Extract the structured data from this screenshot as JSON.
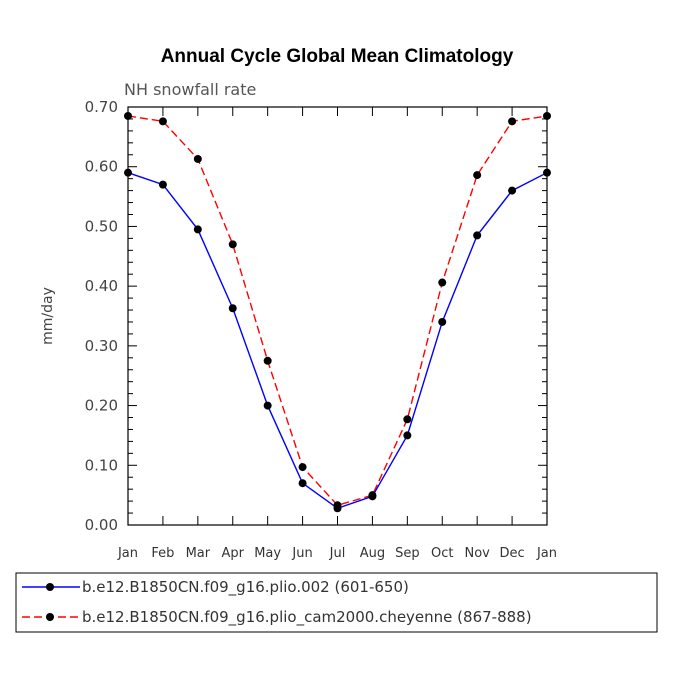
{
  "chart_data": {
    "type": "line",
    "title": "Annual Cycle Global Mean Climatology",
    "subtitle": "NH snowfall rate",
    "xlabel": "",
    "ylabel": "mm/day",
    "ylim": [
      0,
      0.7
    ],
    "yticks": [
      "0.00",
      "0.10",
      "0.20",
      "0.30",
      "0.40",
      "0.50",
      "0.60",
      "0.70"
    ],
    "categories": [
      "Jan",
      "Feb",
      "Mar",
      "Apr",
      "May",
      "Jun",
      "Jul",
      "Aug",
      "Sep",
      "Oct",
      "Nov",
      "Dec",
      "Jan"
    ],
    "series": [
      {
        "name": "b.e12.B1850CN.f09_g16.plio.002 (601-650)",
        "color": "#0000ff",
        "dash": "solid",
        "values": [
          0.59,
          0.57,
          0.495,
          0.363,
          0.2,
          0.07,
          0.028,
          0.048,
          0.15,
          0.34,
          0.485,
          0.56,
          0.59
        ]
      },
      {
        "name": "b.e12.B1850CN.f09_g16.plio_cam2000.cheyenne (867-888)",
        "color": "#ff0000",
        "dash": "dashed",
        "values": [
          0.685,
          0.676,
          0.613,
          0.47,
          0.275,
          0.097,
          0.033,
          0.05,
          0.177,
          0.406,
          0.586,
          0.676,
          0.685
        ]
      }
    ],
    "legend_position": "bottom-left"
  }
}
